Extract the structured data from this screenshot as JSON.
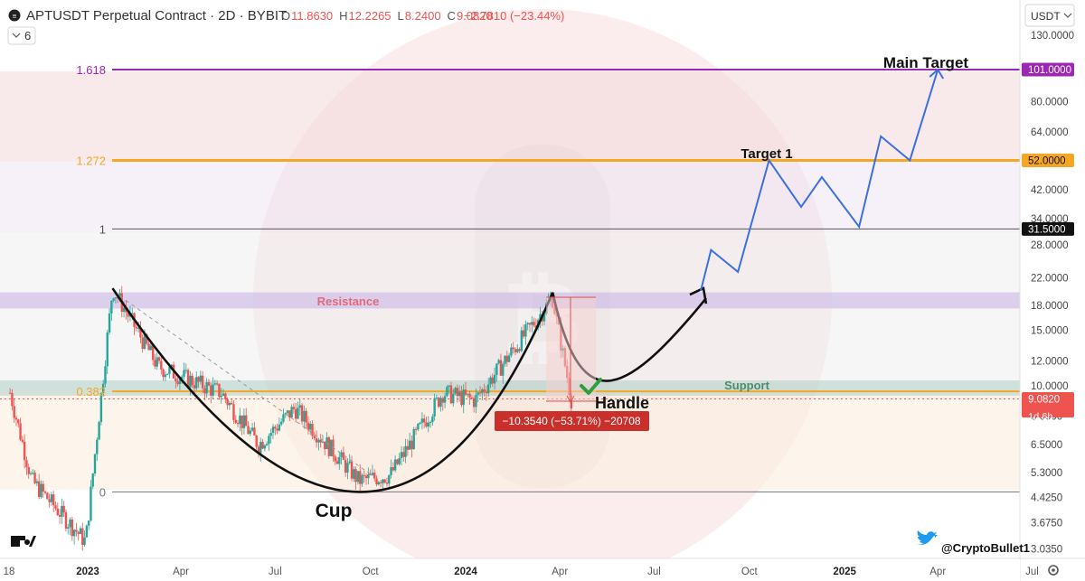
{
  "header": {
    "symbol_title": "APTUSDT Perpetual Contract · 2D · BYBIT",
    "ohlc": [
      {
        "label": "O",
        "value": "11.8630"
      },
      {
        "label": "H",
        "value": "12.2265"
      },
      {
        "label": "L",
        "value": "8.2400"
      },
      {
        "label": "C",
        "value": "9.0820"
      }
    ],
    "change": "−2.7810 (−23.44%)",
    "indicator_count": "6"
  },
  "currency_selector": {
    "value": "USDT"
  },
  "colors": {
    "fib_1618": "#9c27b0",
    "fib_1272": "#f5a623",
    "projection": "#3b6fe0",
    "candle_up": "#26a69a",
    "candle_down": "#ef5350",
    "resistance_text": "#e06a7a",
    "support_text": "#4c8c6c",
    "price_tag": "#ef5350"
  },
  "price_axis": {
    "ticks": [
      "130.0000",
      "80.0000",
      "64.0000",
      "42.0000",
      "34.0000",
      "28.0000",
      "22.0000",
      "18.0000",
      "15.0000",
      "12.0000",
      "10.0000",
      "8.0000",
      "6.5000",
      "5.3000",
      "4.4250",
      "3.6750",
      "3.0350"
    ],
    "labels": [
      {
        "text": "101.0000",
        "kind": "fib-1618"
      },
      {
        "text": "52.0000",
        "kind": "fib-1272"
      },
      {
        "text": "31.5000",
        "kind": "fib-1"
      },
      {
        "text": "9.0820",
        "kind": "last"
      },
      {
        "text": "1d 6h",
        "kind": "countdown"
      }
    ]
  },
  "time_axis": {
    "ticks": [
      "18",
      "2023",
      "Apr",
      "Jul",
      "Oct",
      "2024",
      "Apr",
      "Jul",
      "Oct",
      "2025",
      "Apr",
      "Jul"
    ]
  },
  "fib_levels": [
    {
      "ratio": "1.618",
      "price": 101.0
    },
    {
      "ratio": "1.272",
      "price": 52.0
    },
    {
      "ratio": "1",
      "price": 31.5
    },
    {
      "ratio": "0.382",
      "price": 9.6
    },
    {
      "ratio": "0",
      "price": 4.6
    }
  ],
  "annotations": {
    "resistance": "Resistance",
    "support": "Support",
    "cup": "Cup",
    "handle": "Handle",
    "target_1": "Target 1",
    "main_target": "Main Target",
    "measure": "−10.3540 (−53.71%) −20708",
    "twitter_handle": "@CryptoBullet1"
  },
  "chart_data": {
    "type": "candlestick",
    "y_scale": "log",
    "ylim": [
      3.0,
      140.0
    ],
    "zones": {
      "resistance": [
        17.6,
        19.8
      ],
      "support": [
        9.3,
        10.4
      ]
    },
    "key_points": [
      {
        "label": "cup-left-rim",
        "date": "2023-01-25",
        "price": 20.4
      },
      {
        "label": "cup-bottom",
        "date": "2023-09-20",
        "price": 4.6
      },
      {
        "label": "cup-right-rim",
        "date": "2024-03-25",
        "price": 19.8
      },
      {
        "label": "last-close",
        "date": "2024-04-12",
        "price": 9.082
      }
    ],
    "projection": [
      {
        "date": "2024-08-15",
        "price": 20.0
      },
      {
        "date": "2024-08-25",
        "price": 27.0
      },
      {
        "date": "2024-09-20",
        "price": 23.0
      },
      {
        "date": "2024-10-20",
        "price": 52.0
      },
      {
        "date": "2024-11-20",
        "price": 37.0
      },
      {
        "date": "2024-12-10",
        "price": 46.0
      },
      {
        "date": "2025-01-15",
        "price": 32.0
      },
      {
        "date": "2025-02-05",
        "price": 62.0
      },
      {
        "date": "2025-03-05",
        "price": 52.0
      },
      {
        "date": "2025-04-01",
        "price": 101.0
      }
    ]
  }
}
